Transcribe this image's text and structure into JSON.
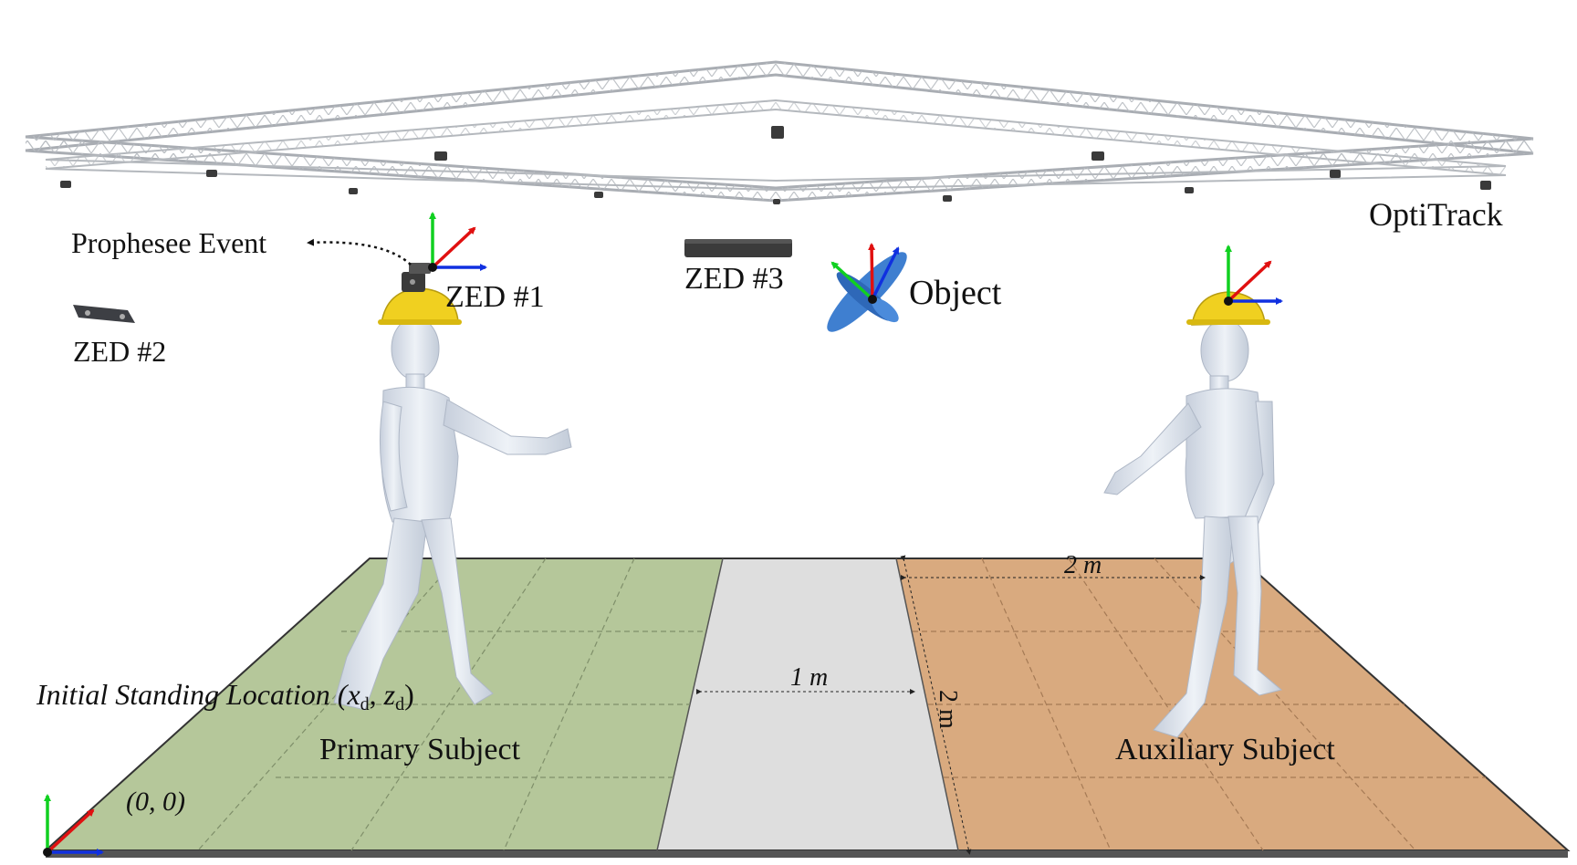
{
  "labels": {
    "optitrack": "OptiTrack",
    "prophesee": "Prophesee Event",
    "zed1": "ZED #1",
    "zed2": "ZED #2",
    "zed3": "ZED #3",
    "object": "Object",
    "initial_location_text": "Initial Standing Location (",
    "xd": "x",
    "sub_d1": "d",
    "comma": ", ",
    "zd": "z",
    "sub_d2": "d",
    "close_paren": ")",
    "primary_subject": "Primary Subject",
    "auxiliary_subject": "Auxiliary Subject",
    "origin": "(0, 0)",
    "dim_width_1m": "1 m",
    "dim_top_2m": "2 m",
    "dim_side_2m": "2 m"
  },
  "colors": {
    "primary_zone": "#b5c79a",
    "middle_zone": "#dedede",
    "auxiliary_zone": "#d9aa7f",
    "helmet": "#f0d020",
    "figure": "#dfe5ef",
    "axis_x": "#1030e0",
    "axis_y": "#10d020",
    "axis_z": "#e01010",
    "truss": "#a9adb3",
    "object": "#3f7fd0"
  }
}
